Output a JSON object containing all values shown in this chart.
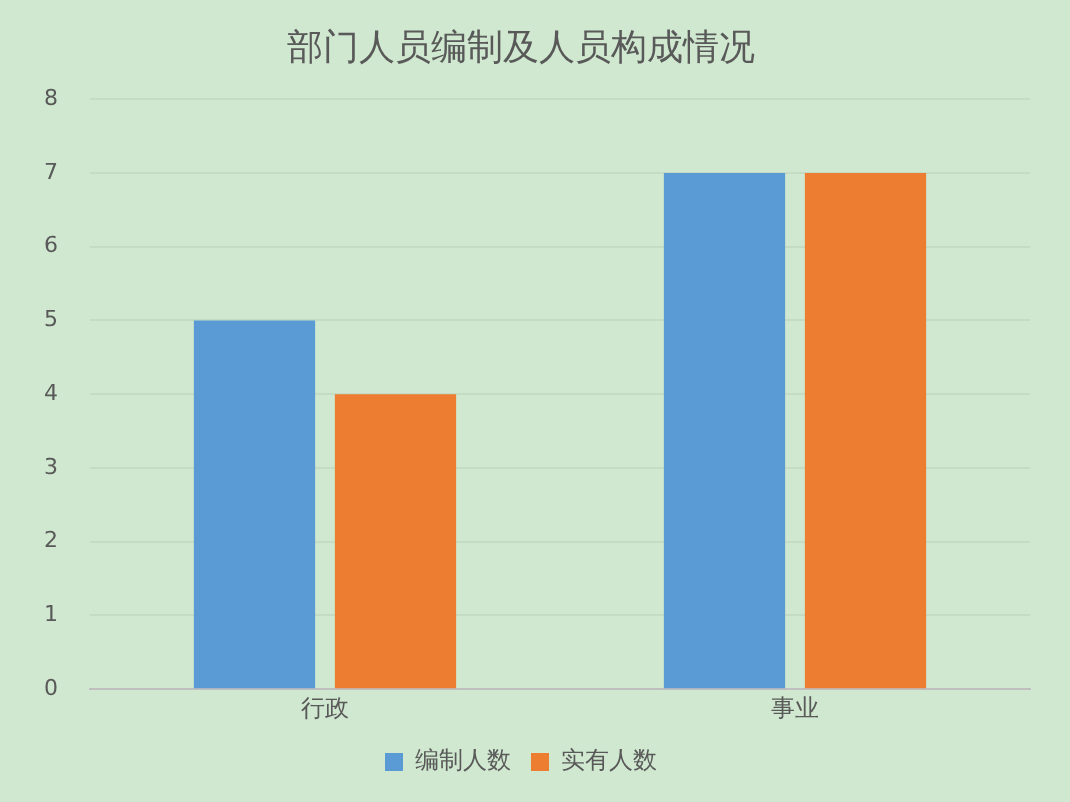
{
  "chart_data": {
    "type": "bar",
    "title": "部门人员编制及人员构成情况",
    "categories": [
      "行政",
      "事业"
    ],
    "series": [
      {
        "name": "编制人数",
        "color": "#5b9bd5",
        "values": [
          5,
          7
        ]
      },
      {
        "name": "实有人数",
        "color": "#ed7d31",
        "values": [
          4,
          7
        ]
      }
    ],
    "ylim": [
      0,
      8
    ],
    "yticks": [
      0,
      1,
      2,
      3,
      4,
      5,
      6,
      7,
      8
    ],
    "grid": "y",
    "legend": "bottom"
  }
}
